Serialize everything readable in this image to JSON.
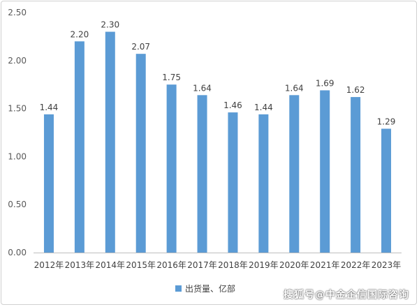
{
  "chart_data": {
    "type": "bar",
    "categories": [
      "2012年",
      "2013年",
      "2014年",
      "2015年",
      "2016年",
      "2017年",
      "2018年",
      "2019年",
      "2020年",
      "2021年",
      "2022年",
      "2023年"
    ],
    "series": [
      {
        "name": "出货量、亿部",
        "values": [
          1.44,
          2.2,
          2.3,
          2.07,
          1.75,
          1.64,
          1.46,
          1.44,
          1.64,
          1.69,
          1.62,
          1.29
        ],
        "labels": [
          "1.44",
          "2.20",
          "2.30",
          "2.07",
          "1.75",
          "1.64",
          "1.46",
          "1.44",
          "1.64",
          "1.69",
          "1.62",
          "1.29"
        ]
      }
    ],
    "ylim": [
      0,
      2.5
    ],
    "yticks": [
      "0.00",
      "0.50",
      "1.00",
      "1.50",
      "2.00",
      "2.50"
    ],
    "grid": false,
    "legend": "bottom-center",
    "bar_color": "#5b9bd5"
  },
  "watermark": "搜狐号@中金企信国际咨询"
}
